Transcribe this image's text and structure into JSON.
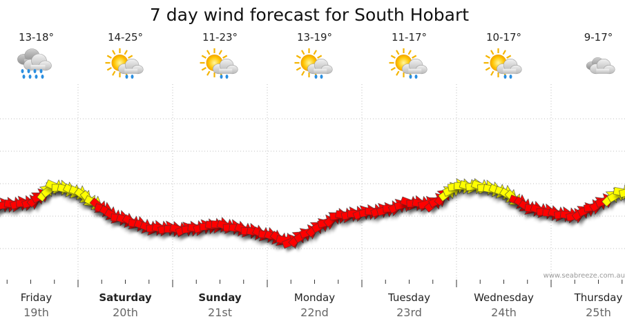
{
  "chart_data": {
    "type": "line",
    "title": "7 day wind forecast for South Hobart",
    "watermark": "www.seabreeze.com.au",
    "days": [
      {
        "name": "Friday",
        "date": "19th",
        "bold": false,
        "temp": "13-18°",
        "icon": "heavy-rain-cloud-icon"
      },
      {
        "name": "Saturday",
        "date": "20th",
        "bold": true,
        "temp": "14-25°",
        "icon": "sun-cloud-rain-icon"
      },
      {
        "name": "Sunday",
        "date": "21st",
        "bold": true,
        "temp": "11-23°",
        "icon": "sun-cloud-rain-icon"
      },
      {
        "name": "Monday",
        "date": "22nd",
        "bold": false,
        "temp": "13-19°",
        "icon": "sun-cloud-rain-icon"
      },
      {
        "name": "Tuesday",
        "date": "23rd",
        "bold": false,
        "temp": "11-17°",
        "icon": "sun-cloud-rain-icon"
      },
      {
        "name": "Wednesday",
        "date": "24th",
        "bold": false,
        "temp": "10-17°",
        "icon": "sun-cloud-rain-icon"
      },
      {
        "name": "Thursday",
        "date": "25th",
        "bold": false,
        "temp": "9-17°",
        "icon": "cloud-icon"
      }
    ],
    "x_unit": "hours from start of Friday",
    "y_relative_level": "0 = bottom gridline, 5 = top gridline",
    "ylim": [
      0,
      5
    ],
    "grid": true,
    "series": [
      {
        "colors": {
          "strong": "#ff0000",
          "light": "#ffff00"
        },
        "points": [
          {
            "x": 0,
            "y": 1.27,
            "c": "strong"
          },
          {
            "x": 12,
            "y": 1.41,
            "c": "strong"
          },
          {
            "x": 18,
            "y": 1.91,
            "c": "light"
          },
          {
            "x": 24,
            "y": 1.73,
            "c": "light"
          },
          {
            "x": 33,
            "y": 1.0,
            "c": "strong"
          },
          {
            "x": 42,
            "y": 0.64,
            "c": "strong"
          },
          {
            "x": 51,
            "y": 0.58,
            "c": "strong"
          },
          {
            "x": 60,
            "y": 0.73,
            "c": "strong"
          },
          {
            "x": 66,
            "y": 0.58,
            "c": "strong"
          },
          {
            "x": 72,
            "y": 0.42,
            "c": "strong"
          },
          {
            "x": 78,
            "y": 0.2,
            "c": "strong"
          },
          {
            "x": 84,
            "y": 0.6,
            "c": "strong"
          },
          {
            "x": 90,
            "y": 1.0,
            "c": "strong"
          },
          {
            "x": 96,
            "y": 1.09,
            "c": "strong"
          },
          {
            "x": 102,
            "y": 1.18,
            "c": "strong"
          },
          {
            "x": 108,
            "y": 1.4,
            "c": "strong"
          },
          {
            "x": 114,
            "y": 1.36,
            "c": "strong"
          },
          {
            "x": 120,
            "y": 1.91,
            "c": "light"
          },
          {
            "x": 126,
            "y": 1.91,
            "c": "light"
          },
          {
            "x": 132,
            "y": 1.73,
            "c": "light"
          },
          {
            "x": 138,
            "y": 1.27,
            "c": "strong"
          },
          {
            "x": 144,
            "y": 1.09,
            "c": "strong"
          },
          {
            "x": 150,
            "y": 1.0,
            "c": "strong"
          },
          {
            "x": 156,
            "y": 1.36,
            "c": "strong"
          },
          {
            "x": 162,
            "y": 1.73,
            "c": "light"
          },
          {
            "x": 168,
            "y": 1.73,
            "c": "light"
          },
          {
            "x": 176,
            "y": 1.55,
            "c": "light"
          },
          {
            "x": 186,
            "y": 2.0,
            "c": "light"
          },
          {
            "x": 198,
            "y": 2.09,
            "c": "light"
          },
          {
            "x": 210,
            "y": 2.27,
            "c": "light"
          },
          {
            "x": 222,
            "y": 1.82,
            "c": "light"
          },
          {
            "x": 234,
            "y": 1.45,
            "c": "light"
          },
          {
            "x": 246,
            "y": 1.55,
            "c": "light"
          },
          {
            "x": 256,
            "y": 2.0,
            "c": "light"
          },
          {
            "x": 264,
            "y": 2.09,
            "c": "light"
          },
          {
            "x": 272,
            "y": 1.64,
            "c": "light"
          },
          {
            "x": 274,
            "y": 1.45,
            "c": "strong"
          }
        ]
      }
    ]
  }
}
